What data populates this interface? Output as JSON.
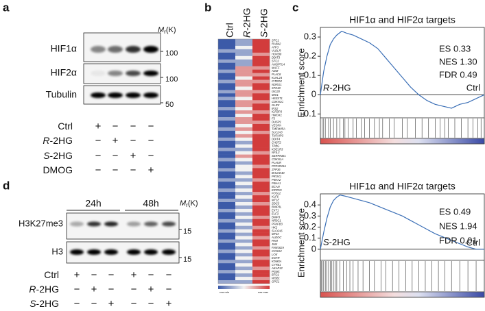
{
  "panels": {
    "a": "a",
    "b": "b",
    "c": "c",
    "d": "d"
  },
  "blot_a": {
    "mr": {
      "m": "M",
      "r": "r",
      "unit": "(K)"
    },
    "rows": [
      {
        "name": "HIF1α",
        "marker": "100"
      },
      {
        "name": "HIF2α",
        "marker": "100"
      },
      {
        "name": "Tubulin",
        "marker": "50"
      }
    ],
    "conditions": [
      {
        "label": "Ctrl",
        "marks": [
          "+",
          "−",
          "−",
          "−"
        ]
      },
      {
        "italic": "R",
        "label": "-2HG",
        "marks": [
          "−",
          "+",
          "−",
          "−"
        ]
      },
      {
        "italic": "S",
        "label": "-2HG",
        "marks": [
          "−",
          "−",
          "+",
          "−"
        ]
      },
      {
        "label": "DMOG",
        "marks": [
          "−",
          "−",
          "−",
          "+"
        ]
      }
    ]
  },
  "blot_d": {
    "times": [
      "24h",
      "48h"
    ],
    "mr": {
      "m": "M",
      "r": "r",
      "unit": "(K)"
    },
    "rows": [
      {
        "name": "H3K27me3",
        "marker": "15"
      },
      {
        "name": "H3",
        "marker": "15"
      }
    ],
    "conditions": [
      {
        "label": "Ctrl",
        "marks": [
          "+",
          "−",
          "−",
          "+",
          "−",
          "−"
        ]
      },
      {
        "italic": "R",
        "label": "-2HG",
        "marks": [
          "−",
          "+",
          "−",
          "−",
          "+",
          "−"
        ]
      },
      {
        "italic": "S",
        "label": "-2HG",
        "marks": [
          "−",
          "−",
          "+",
          "−",
          "−",
          "+"
        ]
      }
    ]
  },
  "heatmap": {
    "columns": [
      {
        "label": "Ctrl"
      },
      {
        "italic": "R",
        "label": "-2HG"
      },
      {
        "italic": "S",
        "label": "-2HG"
      }
    ],
    "scale": {
      "min": "row min",
      "max": "row max"
    },
    "genes": [
      "STC1",
      "RAB42",
      "ATF3",
      "VLDLR",
      "HOXB9",
      "DDIT3",
      "STC2",
      "ANGPTL4",
      "MAFF",
      "ADM",
      "PLAC8",
      "KLHL24",
      "CITED2",
      "NDRG1",
      "STK40",
      "ISG20",
      "MXI1",
      "HS3ST1",
      "CDKN1C",
      "GLRX",
      "IRS2",
      "IGFBP3",
      "HMOX1",
      "F3",
      "DUSP1",
      "VEGFA",
      "TMEM45A",
      "SLC2A3",
      "TNFAIP3",
      "DDIT4",
      "CHST2",
      "TPBG",
      "KDELR3",
      "NFIL3",
      "SERPINE1",
      "CDKN1A",
      "PLAUR",
      "PPP1R15A",
      "ZFP36",
      "BHLHE40",
      "PROX1",
      "P4HA2",
      "P4HA1",
      "BCAN",
      "ERRFI1",
      "FOSL2",
      "KLF6",
      "MT1E",
      "SDC3",
      "BNIP3L",
      "EXT1",
      "ELF3",
      "BNIP3",
      "NR3C1",
      "PFKFB3",
      "HK2",
      "SLC6A6",
      "MT2A",
      "ALDOC",
      "PAM",
      "JUN",
      "FAM162A",
      "CCNG2",
      "LOX",
      "EGFR",
      "KDM3A",
      "CYR61",
      "AKAP12",
      "PGM1",
      "BTG1",
      "WSB1",
      "GPC1"
    ],
    "values": [
      [
        -2,
        -1,
        2
      ],
      [
        -2,
        -1,
        2
      ],
      [
        -2,
        0,
        2
      ],
      [
        -1,
        -1,
        2
      ],
      [
        -2,
        -1,
        1
      ],
      [
        -2,
        0,
        2
      ],
      [
        -1,
        -1,
        2
      ],
      [
        -2,
        -1,
        2
      ],
      [
        -2,
        1,
        1
      ],
      [
        -1,
        1,
        2
      ],
      [
        -2,
        1,
        1
      ],
      [
        -2,
        0,
        2
      ],
      [
        -1,
        1,
        1
      ],
      [
        -2,
        1,
        2
      ],
      [
        -2,
        0,
        2
      ],
      [
        -1,
        1,
        1
      ],
      [
        -2,
        1,
        2
      ],
      [
        -1,
        0,
        2
      ],
      [
        -2,
        1,
        1
      ],
      [
        -2,
        1,
        2
      ],
      [
        -1,
        0,
        2
      ],
      [
        -2,
        1,
        1
      ],
      [
        -2,
        0,
        2
      ],
      [
        -1,
        1,
        2
      ],
      [
        -2,
        1,
        1
      ],
      [
        -2,
        0,
        2
      ],
      [
        -1,
        1,
        2
      ],
      [
        -2,
        0,
        1
      ],
      [
        -2,
        1,
        2
      ],
      [
        -1,
        0,
        2
      ],
      [
        -2,
        -1,
        2
      ],
      [
        -2,
        0,
        2
      ],
      [
        -1,
        -1,
        2
      ],
      [
        -2,
        0,
        1
      ],
      [
        -2,
        1,
        2
      ],
      [
        -1,
        0,
        2
      ],
      [
        -2,
        -1,
        2
      ],
      [
        -2,
        0,
        1
      ],
      [
        -1,
        0,
        2
      ],
      [
        -2,
        -1,
        2
      ],
      [
        -2,
        0,
        2
      ],
      [
        -1,
        -1,
        1
      ],
      [
        -2,
        0,
        2
      ],
      [
        -2,
        -1,
        2
      ],
      [
        -1,
        0,
        2
      ],
      [
        -2,
        -1,
        1
      ],
      [
        -2,
        0,
        2
      ],
      [
        -1,
        -1,
        2
      ],
      [
        -2,
        0,
        1
      ],
      [
        -2,
        -1,
        2
      ],
      [
        -1,
        0,
        2
      ],
      [
        -2,
        -1,
        2
      ],
      [
        -2,
        0,
        1
      ],
      [
        -1,
        -1,
        2
      ],
      [
        -2,
        0,
        2
      ],
      [
        -2,
        -1,
        1
      ],
      [
        -1,
        0,
        2
      ],
      [
        -2,
        -1,
        2
      ],
      [
        -2,
        0,
        1
      ],
      [
        -1,
        -1,
        2
      ],
      [
        -2,
        0,
        2
      ],
      [
        -2,
        -1,
        1
      ],
      [
        -1,
        0,
        2
      ],
      [
        -2,
        -1,
        2
      ],
      [
        -2,
        0,
        1
      ],
      [
        -1,
        -1,
        2
      ],
      [
        -2,
        0,
        2
      ],
      [
        -2,
        -1,
        1
      ],
      [
        -1,
        0,
        2
      ],
      [
        -2,
        -1,
        2
      ],
      [
        -2,
        0,
        1
      ],
      [
        -1,
        -1,
        2
      ]
    ]
  },
  "gsea": [
    {
      "title": "HIF1α and HIF2α targets",
      "ylabel": "Enrichment score",
      "stats": [
        "ES 0.33",
        "NES 1.30",
        "FDR 0.49"
      ],
      "left": {
        "italic": "R",
        "label": "-2HG"
      },
      "right": "Ctrl",
      "ylim": [
        -0.12,
        0.35
      ],
      "yticks": [
        -0.1,
        0,
        0.1,
        0.2,
        0.3
      ],
      "x": [
        0,
        0.02,
        0.04,
        0.06,
        0.08,
        0.1,
        0.13,
        0.16,
        0.2,
        0.25,
        0.3,
        0.35,
        0.4,
        0.45,
        0.5,
        0.55,
        0.6,
        0.65,
        0.7,
        0.75,
        0.8,
        0.85,
        0.9,
        0.95,
        1
      ],
      "es": [
        0,
        0.12,
        0.2,
        0.26,
        0.29,
        0.31,
        0.33,
        0.32,
        0.31,
        0.29,
        0.27,
        0.24,
        0.19,
        0.14,
        0.09,
        0.04,
        0,
        -0.03,
        -0.05,
        -0.06,
        -0.07,
        -0.05,
        -0.04,
        -0.02,
        0
      ],
      "hits": [
        0.01,
        0.02,
        0.03,
        0.05,
        0.06,
        0.08,
        0.1,
        0.12,
        0.14,
        0.15,
        0.17,
        0.2,
        0.22,
        0.25,
        0.27,
        0.3,
        0.33,
        0.36,
        0.38,
        0.42,
        0.45,
        0.5,
        0.53,
        0.58,
        0.62,
        0.66,
        0.7,
        0.73,
        0.76,
        0.78,
        0.82,
        0.86,
        0.9,
        0.93,
        0.96,
        0.98
      ]
    },
    {
      "title": "HIF1α and HIF2α targets",
      "ylabel": "Enrichment score",
      "stats": [
        "ES 0.49",
        "NES 1.94",
        "FDR 0.01"
      ],
      "left": {
        "italic": "S",
        "label": "-2HG"
      },
      "right": "Ctrl",
      "ylim": [
        -0.1,
        0.5
      ],
      "yticks": [
        0,
        0.1,
        0.2,
        0.3,
        0.4
      ],
      "x": [
        0,
        0.02,
        0.04,
        0.06,
        0.08,
        0.1,
        0.12,
        0.15,
        0.2,
        0.25,
        0.3,
        0.35,
        0.4,
        0.45,
        0.5,
        0.55,
        0.6,
        0.65,
        0.7,
        0.75,
        0.8,
        0.85,
        0.9,
        0.95,
        1
      ],
      "es": [
        0,
        0.15,
        0.28,
        0.38,
        0.44,
        0.47,
        0.49,
        0.48,
        0.46,
        0.44,
        0.42,
        0.39,
        0.36,
        0.33,
        0.3,
        0.26,
        0.22,
        0.18,
        0.14,
        0.11,
        0.08,
        0.05,
        0.02,
        0,
        0
      ],
      "hits": [
        0.005,
        0.01,
        0.02,
        0.03,
        0.04,
        0.05,
        0.06,
        0.07,
        0.08,
        0.09,
        0.1,
        0.12,
        0.14,
        0.16,
        0.18,
        0.2,
        0.23,
        0.26,
        0.3,
        0.33,
        0.37,
        0.4,
        0.44,
        0.48,
        0.52,
        0.56,
        0.6,
        0.64,
        0.68,
        0.72,
        0.76,
        0.8,
        0.85,
        0.9,
        0.95
      ]
    }
  ]
}
